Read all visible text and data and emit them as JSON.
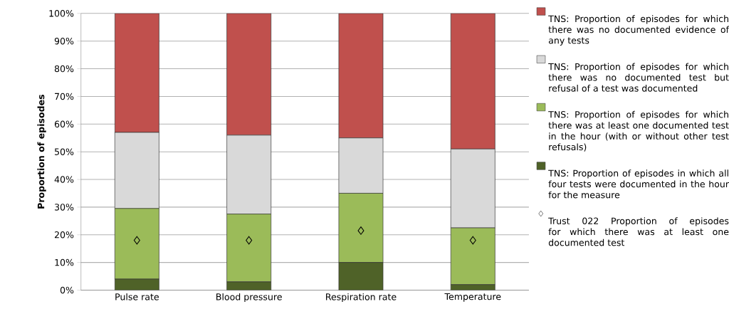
{
  "chart_data": {
    "type": "bar",
    "stacked": true,
    "ylabel": "Proportion of episodes",
    "categories": [
      "Pulse rate",
      "Blood pressure",
      "Respiration rate",
      "Temperature"
    ],
    "series": [
      {
        "name": "TNS: Proportion of episodes in which all four tests were documented in the hour for the measure",
        "color": "#4f6228",
        "values": [
          4,
          3,
          10,
          2
        ]
      },
      {
        "name": "TNS: Proportion of episodes for which there was at least one documented test in the hour (with or without other test refusals)",
        "color": "#9bbb59",
        "values": [
          25.5,
          24.5,
          25,
          20.5
        ]
      },
      {
        "name": "TNS: Proportion of episodes for which there was no documented test but refusal of a test was documented",
        "color": "#d9d9d9",
        "values": [
          27.5,
          28.5,
          20,
          28.5
        ]
      },
      {
        "name": "TNS: Proportion of episodes for which there was no documented evidence of any tests",
        "color": "#c0504d",
        "values": [
          43,
          44,
          45,
          49
        ]
      },
      {
        "name": "Trust 022 Proportion of episodes for which there was at least one documented test",
        "type": "scatter",
        "marker": "diamond",
        "color": "#000000",
        "x": [
          "Pulse rate",
          "Blood pressure",
          "Respiration rate",
          "Temperature"
        ],
        "values": [
          18,
          18,
          21.5,
          18
        ]
      }
    ],
    "ylim": [
      0,
      100
    ],
    "yticks": [
      {
        "value": 0,
        "label": "0%"
      },
      {
        "value": 10,
        "label": "10%"
      },
      {
        "value": 20,
        "label": "20%"
      },
      {
        "value": 30,
        "label": "30%"
      },
      {
        "value": 40,
        "label": "40%"
      },
      {
        "value": 50,
        "label": "50%"
      },
      {
        "value": 60,
        "label": "60%"
      },
      {
        "value": 70,
        "label": "70%"
      },
      {
        "value": 80,
        "label": "80%"
      },
      {
        "value": 90,
        "label": "90%"
      },
      {
        "value": 100,
        "label": "100%"
      }
    ],
    "grid": "y",
    "legend": "right"
  }
}
